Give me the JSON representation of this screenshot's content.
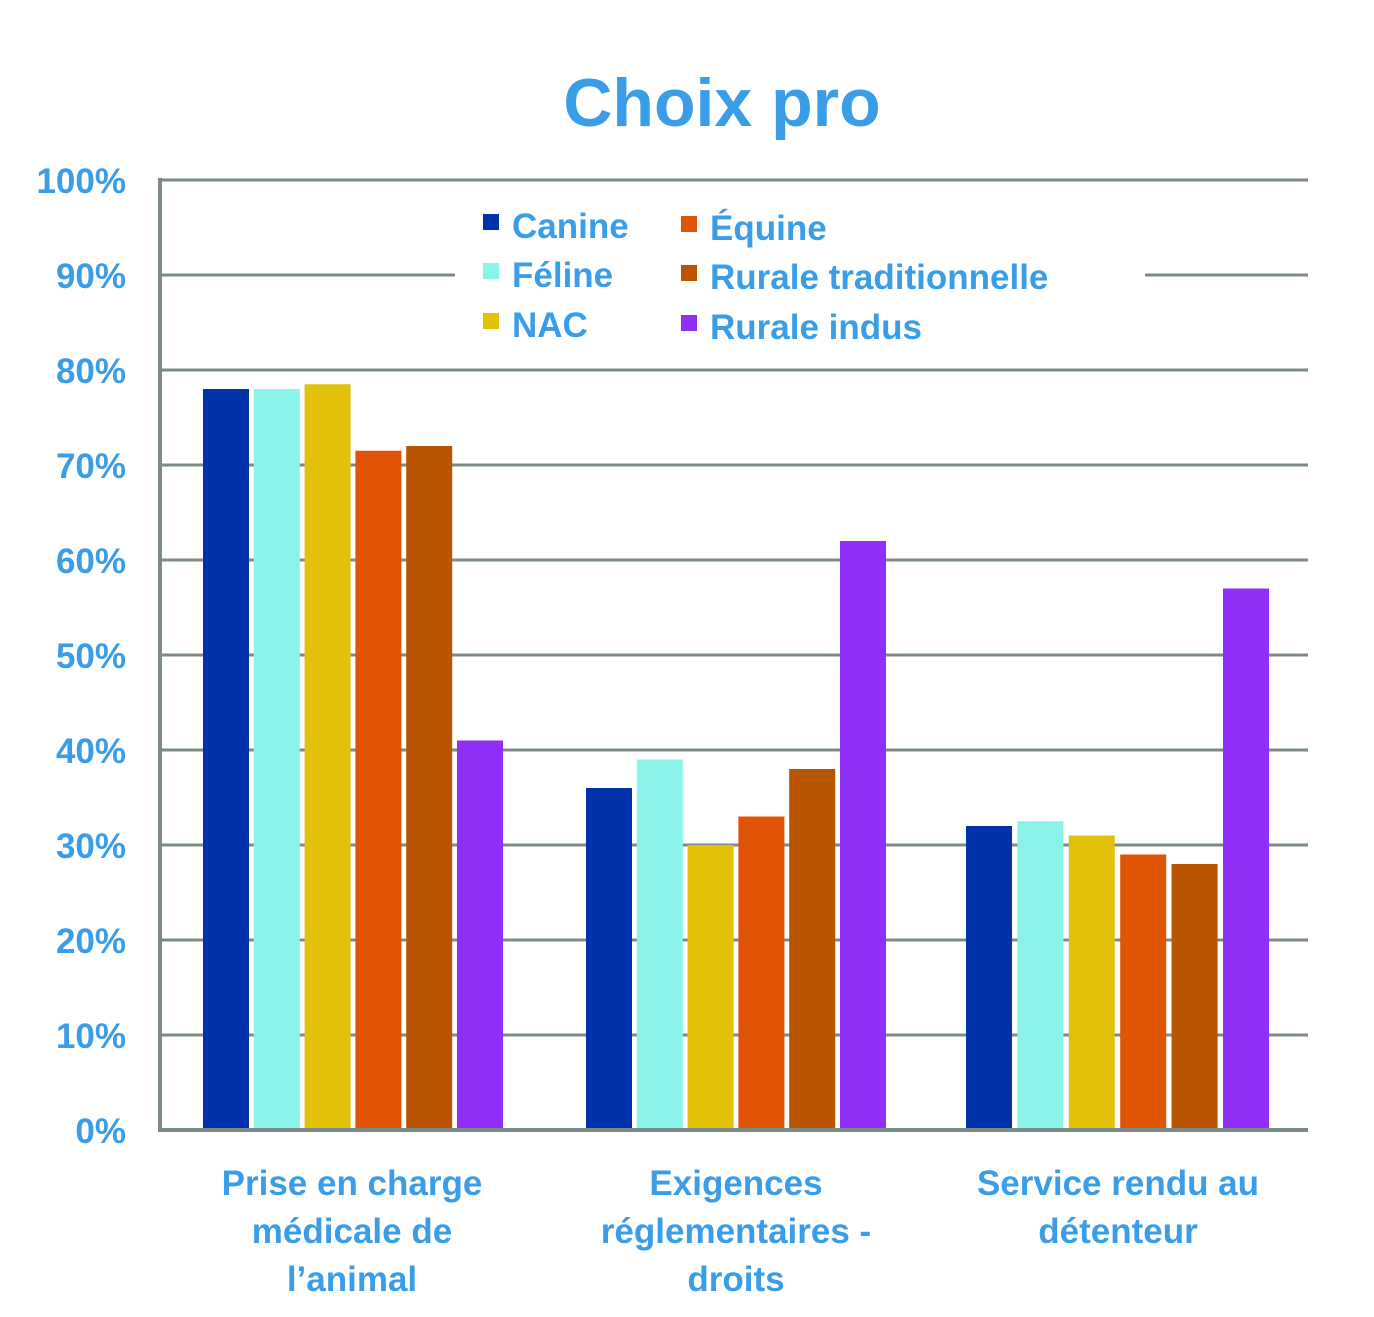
{
  "chart_data": {
    "type": "bar",
    "title": "Choix pro",
    "xlabel": "",
    "ylabel": "",
    "ylim": [
      0,
      100
    ],
    "yticks": [
      0,
      10,
      20,
      30,
      40,
      50,
      60,
      70,
      80,
      90,
      100
    ],
    "tick_suffix": "%",
    "grid": true,
    "legend_position": "top-center",
    "categories": [
      [
        "Prise en charge",
        "médicale de",
        "l’animal"
      ],
      [
        "Exigences",
        "réglementaires -",
        "droits"
      ],
      [
        "Service rendu au",
        "détenteur"
      ]
    ],
    "series": [
      {
        "name": "Canine",
        "color": "#0033aa",
        "values": [
          78,
          36,
          32
        ]
      },
      {
        "name": "Féline",
        "color": "#8cf3e9",
        "values": [
          78,
          39,
          32.5
        ]
      },
      {
        "name": "NAC",
        "color": "#e2c10b",
        "values": [
          78.5,
          30,
          31
        ]
      },
      {
        "name": "Équine",
        "color": "#e05406",
        "values": [
          71.5,
          33,
          29
        ]
      },
      {
        "name": "Rurale traditionnelle",
        "color": "#b95500",
        "values": [
          72,
          38,
          28
        ]
      },
      {
        "name": "Rurale indus",
        "color": "#9030f7",
        "values": [
          41,
          62,
          57
        ]
      }
    ],
    "colors": {
      "text": "#3a9de8",
      "axis": "#7d8a8a",
      "grid": "#7d8a8a"
    }
  }
}
